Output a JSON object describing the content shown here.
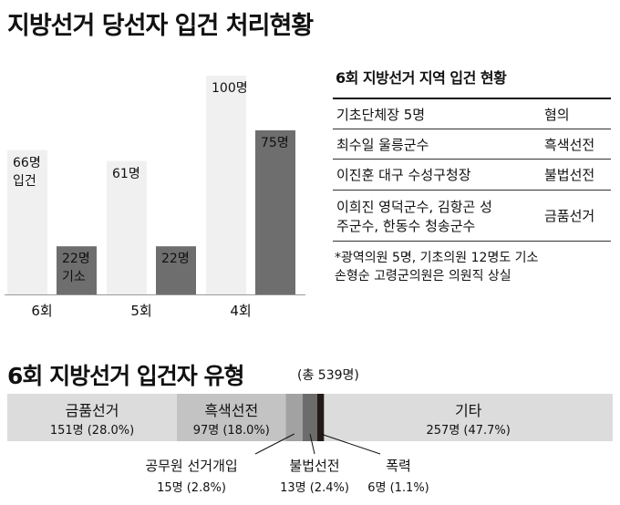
{
  "title": "지방선거 당선자 입건 처리현황",
  "chart_data": [
    {
      "type": "bar",
      "categories": [
        "6회",
        "5회",
        "4회"
      ],
      "series": [
        {
          "name": "입건",
          "values": [
            66,
            61,
            100
          ],
          "labels": [
            "66명\n입건",
            "61명",
            "100명"
          ],
          "color": "#f0f0f0"
        },
        {
          "name": "기소",
          "values": [
            22,
            22,
            75
          ],
          "labels": [
            "22명\n기소",
            "22명",
            "75명"
          ],
          "color": "#6e6e6e"
        }
      ],
      "ylim": [
        0,
        100
      ]
    },
    {
      "type": "bar",
      "orientation": "horizontal-stacked",
      "title": "6회 지방선거 입건자 유형",
      "subtitle": "(총 539명)",
      "total": 539,
      "segments": [
        {
          "name": "금품선거",
          "count": 151,
          "value_label": "151명 (28.0%)",
          "percent": 28.0,
          "color": "#dcdcdc"
        },
        {
          "name": "흑색선전",
          "count": 97,
          "value_label": "97명 (18.0%)",
          "percent": 18.0,
          "color": "#c3c3c3"
        },
        {
          "name": "공무원 선거개입",
          "count": 15,
          "value_label": "15명 (2.8%)",
          "percent": 2.8,
          "color": "#a2a2a2"
        },
        {
          "name": "불법선전",
          "count": 13,
          "value_label": "13명 (2.4%)",
          "percent": 2.4,
          "color": "#6c6c6c"
        },
        {
          "name": "폭력",
          "count": 6,
          "value_label": "6명 (1.1%)",
          "percent": 1.1,
          "color": "#221a16"
        },
        {
          "name": "기타",
          "count": 257,
          "value_label": "257명 (47.7%)",
          "percent": 47.7,
          "color": "#dcdcdc"
        }
      ]
    }
  ],
  "table": {
    "title": "6회 지방선거 지역 입건 현황",
    "rows": [
      {
        "name": "기초단체장 5명",
        "type": "혐의"
      },
      {
        "name": "최수일 울릉군수",
        "type": "흑색선전"
      },
      {
        "name": "이진훈 대구 수성구청장",
        "type": "불법선전"
      },
      {
        "name": "이희진 영덕군수, 김항곤 성\n주군수, 한동수 청송군수",
        "type": "금품선거"
      }
    ],
    "note": "*광역의원 5명, 기초의원 12명도 기소\n 손형순 고령군의원은 의원직 상실"
  }
}
